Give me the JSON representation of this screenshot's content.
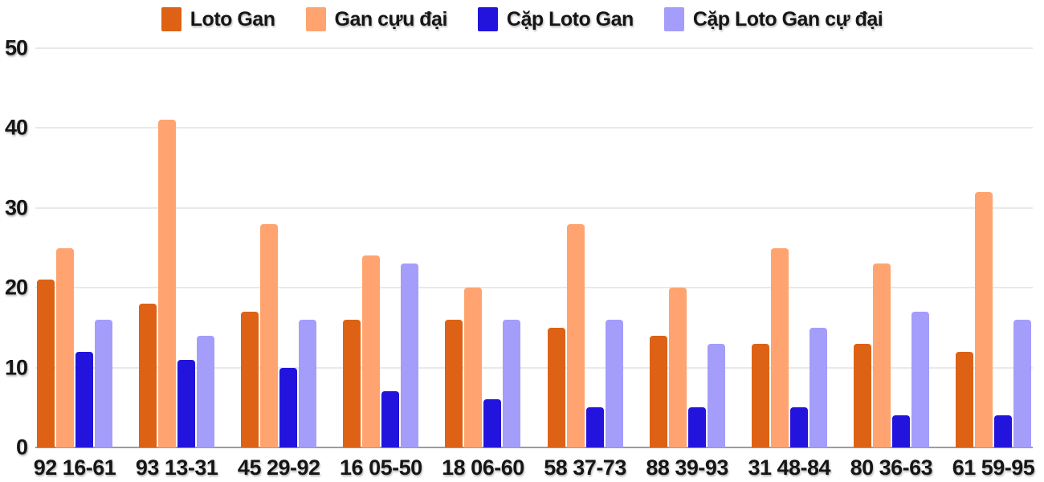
{
  "chart_data": {
    "type": "bar",
    "title": "",
    "xlabel": "",
    "ylabel": "",
    "ylim": [
      0,
      50
    ],
    "yticks": [
      0,
      10,
      20,
      30,
      40,
      50
    ],
    "grid": true,
    "legend_position": "top",
    "categories": [
      "92 16-61",
      "93 13-31",
      "45 29-92",
      "16 05-50",
      "18 06-60",
      "58 37-73",
      "88 39-93",
      "31 48-84",
      "80 36-63",
      "61 59-95"
    ],
    "series": [
      {
        "name": "Loto Gan",
        "color": "#DD6215",
        "values": [
          21,
          18,
          17,
          16,
          16,
          15,
          14,
          13,
          13,
          12
        ]
      },
      {
        "name": "Gan cựu đại",
        "color": "#FFA470",
        "values": [
          25,
          41,
          28,
          24,
          20,
          28,
          20,
          25,
          23,
          32
        ]
      },
      {
        "name": "Cặp Loto Gan",
        "color": "#2214DD",
        "values": [
          12,
          11,
          10,
          7,
          6,
          5,
          5,
          5,
          4,
          4
        ]
      },
      {
        "name": "Cặp Loto Gan cự đại",
        "color": "#A49DFA",
        "values": [
          16,
          14,
          16,
          23,
          16,
          16,
          13,
          15,
          17,
          16
        ]
      }
    ]
  },
  "colors": {
    "background": "#ffffff",
    "grid": "#e9e9e9",
    "axis_line": "#9c9c9c",
    "text": "#161616"
  }
}
